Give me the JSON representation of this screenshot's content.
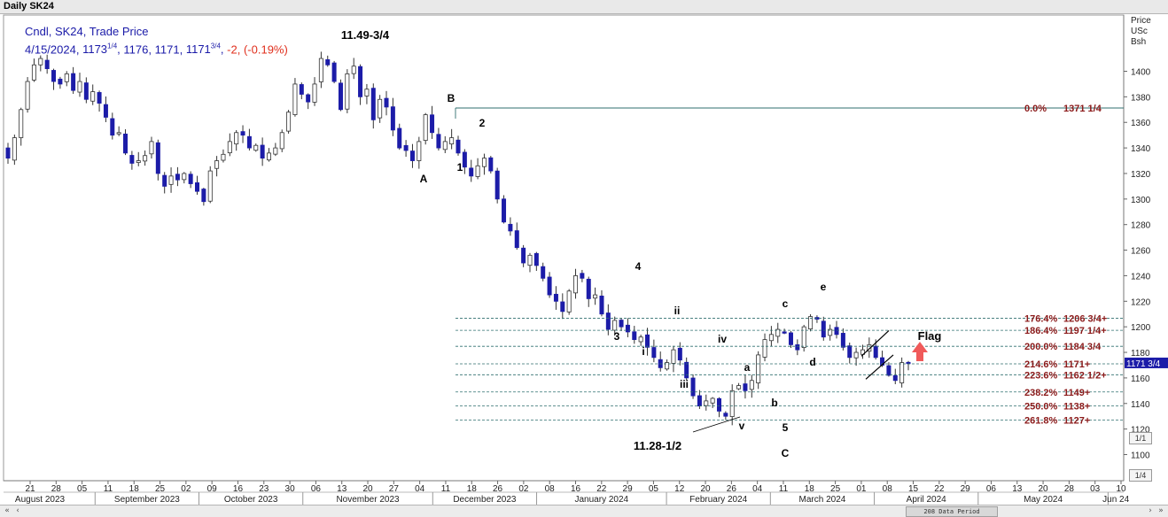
{
  "window": {
    "title": "Daily SK24"
  },
  "info": {
    "line1": "Cndl, SK24, Trade Price",
    "line2_date": "4/15/2024,",
    "open_whole": "1173",
    "open_frac": "1/4",
    "high": "1176,",
    "low": "1171,",
    "close_whole": "1171",
    "close_frac": "3/4",
    "change": "-2,",
    "change_pct": "(-0.19%)"
  },
  "axis": {
    "price_header": [
      "Price",
      "USc",
      "Bsh"
    ],
    "current_price_label": "1171 3/4"
  },
  "scroll": {
    "period_label": "208 Data Period",
    "left_buttons": [
      "«",
      "‹"
    ],
    "right_buttons": [
      "›",
      "»"
    ]
  },
  "pager": {
    "top": "1/1",
    "bottom": "1/4"
  },
  "colors": {
    "up": "#ffffff",
    "down": "#1c1ca8",
    "fib_text": "#8b1a1a",
    "fib_line": "#2f6f6f",
    "current_box": "#1c1ca8",
    "arrow": "#f05a5a"
  },
  "chart_data": {
    "type": "candlestick",
    "title": "",
    "ylim": [
      1090,
      1430
    ],
    "y_ticks": [
      1100,
      1120,
      1140,
      1160,
      1180,
      1200,
      1220,
      1240,
      1260,
      1280,
      1300,
      1320,
      1340,
      1360,
      1380,
      1400
    ],
    "x_day_ticks": [
      "21",
      "28",
      "05",
      "11",
      "18",
      "25",
      "02",
      "09",
      "16",
      "23",
      "30",
      "06",
      "13",
      "20",
      "27",
      "04",
      "11",
      "18",
      "26",
      "02",
      "08",
      "16",
      "22",
      "29",
      "05",
      "12",
      "20",
      "26",
      "04",
      "11",
      "18",
      "25",
      "01",
      "08",
      "15",
      "22",
      "29",
      "06",
      "13",
      "20",
      "28",
      "03",
      "10"
    ],
    "x_month_labels": [
      "August 2023",
      "September 2023",
      "October 2023",
      "November 2023",
      "December 2023",
      "January 2024",
      "February 2024",
      "March 2024",
      "April 2024",
      "May 2024",
      "Jun 24"
    ],
    "candles_close_path": [
      1332,
      1348,
      1370,
      1392,
      1405,
      1410,
      1402,
      1392,
      1390,
      1398,
      1385,
      1392,
      1378,
      1384,
      1375,
      1364,
      1350,
      1352,
      1336,
      1328,
      1330,
      1334,
      1345,
      1320,
      1310,
      1318,
      1315,
      1320,
      1312,
      1306,
      1298,
      1322,
      1330,
      1335,
      1345,
      1352,
      1350,
      1340,
      1342,
      1332,
      1336,
      1340,
      1352,
      1368,
      1390,
      1382,
      1376,
      1390,
      1410,
      1405,
      1392,
      1370,
      1398,
      1404,
      1380,
      1386,
      1362,
      1378,
      1372,
      1354,
      1340,
      1338,
      1330,
      1345,
      1366,
      1352,
      1340,
      1345,
      1348,
      1336,
      1325,
      1318,
      1326,
      1332,
      1322,
      1300,
      1282,
      1275,
      1262,
      1250,
      1256,
      1248,
      1238,
      1225,
      1220,
      1212,
      1228,
      1240,
      1238,
      1222,
      1225,
      1210,
      1198,
      1205,
      1200,
      1196,
      1190,
      1192,
      1184,
      1176,
      1168,
      1172,
      1182,
      1174,
      1160,
      1146,
      1138,
      1142,
      1144,
      1134,
      1130,
      1150,
      1154,
      1150,
      1158,
      1178,
      1190,
      1194,
      1198,
      1196,
      1186,
      1182,
      1200,
      1208,
      1206,
      1192,
      1198,
      1194,
      1184,
      1176,
      1180,
      1182,
      1186,
      1176,
      1170,
      1162,
      1158,
      1172,
      1171.75
    ],
    "wave_labels": [
      {
        "text": "11.49-3/4",
        "date": "Nov 17 2023",
        "price": 1420
      },
      {
        "text": "A",
        "date": "Dec 04 2023",
        "price": 1318
      },
      {
        "text": "B",
        "date": "Dec 11 2023",
        "price": 1380
      },
      {
        "text": "1",
        "date": "Dec 14 2023",
        "price": 1330
      },
      {
        "text": "2",
        "date": "Dec 19 2023",
        "price": 1365
      },
      {
        "text": "4",
        "date": "Jan 29 2024",
        "price": 1253
      },
      {
        "text": "3",
        "date": "Jan 24 2024",
        "price": 1192
      },
      {
        "text": "ii",
        "date": "Feb 13 2024",
        "price": 1207
      },
      {
        "text": "i",
        "date": "Feb 05 2024",
        "price": 1181
      },
      {
        "text": "iv",
        "date": "Feb 22 2024",
        "price": 1189
      },
      {
        "text": "iii",
        "date": "Feb 13 2024",
        "price": 1157
      },
      {
        "text": "a",
        "date": "Mar 01 2024",
        "price": 1167
      },
      {
        "text": "b",
        "date": "Mar 06 2024",
        "price": 1140
      },
      {
        "text": "v",
        "date": "Feb 28 2024",
        "price": 1125
      },
      {
        "text": "5",
        "date": "Mar 08 2024",
        "price": 1125
      },
      {
        "text": "C",
        "date": "Mar 08 2024",
        "price": 1100
      },
      {
        "text": "c",
        "date": "Mar 13 2024",
        "price": 1218
      },
      {
        "text": "d",
        "date": "Mar 20 2024",
        "price": 1180
      },
      {
        "text": "e",
        "date": "Mar 22 2024",
        "price": 1224
      },
      {
        "text": "Flag",
        "date": "Apr 20 2024",
        "price": 1185
      },
      {
        "text": "11.28-1/2",
        "date": "Feb 06 2024",
        "price": 1107
      }
    ],
    "fib_levels": [
      {
        "label": "0.0%",
        "value": "1371 1/4",
        "price": 1371.25
      },
      {
        "label": "176.4%",
        "value": "1206 3/4+",
        "price": 1206.75
      },
      {
        "label": "186.4%",
        "value": "1197 1/4+",
        "price": 1197.25
      },
      {
        "label": "200.0%",
        "value": "1184 3/4",
        "price": 1184.75
      },
      {
        "label": "214.6%",
        "value": "1171+",
        "price": 1171
      },
      {
        "label": "223.6%",
        "value": "1162 1/2+",
        "price": 1162.5
      },
      {
        "label": "238.2%",
        "value": "1149+",
        "price": 1149
      },
      {
        "label": "250.0%",
        "value": "1138+",
        "price": 1138
      },
      {
        "label": "261.8%",
        "value": "1127+",
        "price": 1127
      }
    ]
  }
}
